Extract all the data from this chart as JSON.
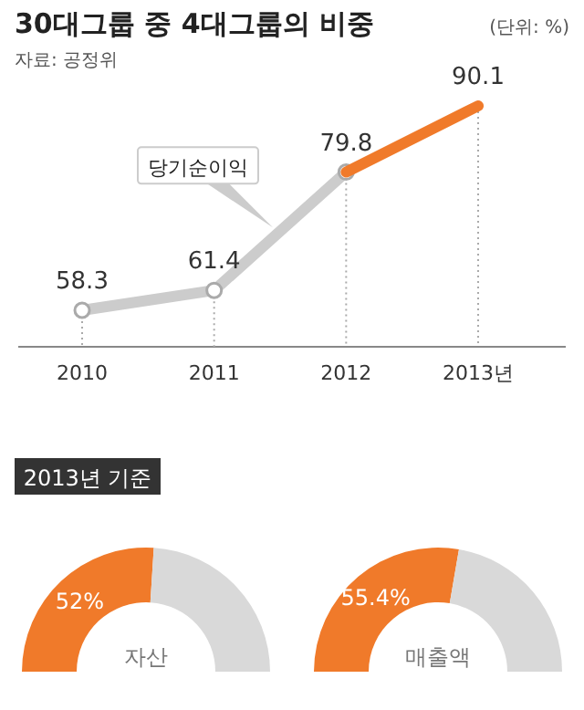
{
  "chart_data": [
    {
      "type": "line",
      "title": "30대그룹 중 4대그룹의 비중",
      "subtitle": "자료: 공정위",
      "annotations": [
        "(단위: %)"
      ],
      "categories": [
        "2010",
        "2011",
        "2012",
        "2013년"
      ],
      "series": [
        {
          "name": "당기순이익",
          "color": "#cccccc",
          "values": [
            58.3,
            61.4,
            79.8,
            null
          ],
          "marker": "circle",
          "value_labels": [
            "58.3",
            "61.4",
            "79.8",
            null
          ]
        },
        {
          "color": "#f07a2a",
          "values": [
            null,
            null,
            79.8,
            90.1
          ],
          "marker": "none",
          "value_labels": [
            null,
            null,
            null,
            "90.1"
          ]
        }
      ],
      "grid": "x"
    },
    {
      "type": "donut",
      "title": "2013년 기준",
      "xlabel": "자산",
      "categories": [
        null,
        null
      ],
      "values": [
        52,
        48
      ],
      "colors": [
        "#f07a2a",
        "#d9d9d9"
      ],
      "value_labels": [
        "52%",
        null
      ]
    },
    {
      "type": "donut",
      "xlabel": "매출액",
      "categories": [
        null,
        null
      ],
      "values": [
        55.4,
        44.6
      ],
      "colors": [
        "#f07a2a",
        "#d9d9d9"
      ],
      "value_labels": [
        "55.4%",
        null
      ]
    }
  ]
}
